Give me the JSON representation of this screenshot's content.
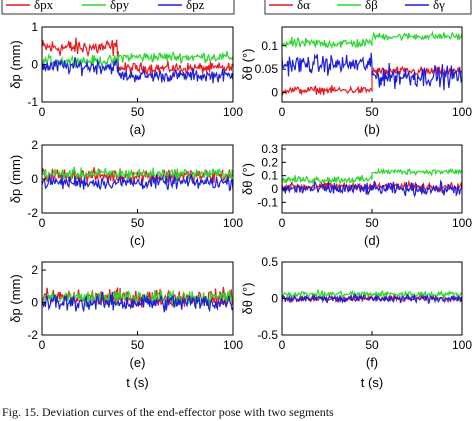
{
  "figure_caption": "Fig. 15.    Deviation curves of the end-effector pose with two segments",
  "colors": {
    "red": "#e8191e",
    "green": "#2fd62f",
    "blue": "#1f1fd8",
    "axis": "#000000"
  },
  "legend_left": {
    "entries": [
      "δpx",
      "δpy",
      "δpz"
    ]
  },
  "legend_right": {
    "entries": [
      "δα",
      "δβ",
      "δγ"
    ]
  },
  "chart_data": [
    {
      "panel": "(a)",
      "type": "line",
      "xlabel": "",
      "ylabel": "δp (mm)",
      "xlim": [
        0,
        100
      ],
      "ylim": [
        -1,
        1
      ],
      "xticks": [
        "0",
        "50",
        "100"
      ],
      "yticks": [
        "1",
        "0",
        "-1"
      ],
      "series": [
        {
          "name": "δpx",
          "color": "red",
          "segments": [
            [
              0,
              40,
              0.45,
              0.35
            ],
            [
              40,
              100,
              -0.1,
              0.22
            ]
          ]
        },
        {
          "name": "δpy",
          "color": "green",
          "segments": [
            [
              0,
              40,
              0.1,
              0.2
            ],
            [
              40,
              100,
              0.2,
              0.2
            ]
          ]
        },
        {
          "name": "δpz",
          "color": "blue",
          "segments": [
            [
              0,
              40,
              -0.05,
              0.3
            ],
            [
              40,
              100,
              -0.3,
              0.25
            ]
          ]
        }
      ]
    },
    {
      "panel": "(b)",
      "type": "line",
      "xlabel": "",
      "ylabel": "δθ (°)",
      "xlim": [
        0,
        100
      ],
      "ylim": [
        -0.02,
        0.14
      ],
      "xticks": [
        "0",
        "50",
        "100"
      ],
      "yticks": [
        "0.1",
        "0.05",
        "0"
      ],
      "series": [
        {
          "name": "δα",
          "color": "red",
          "segments": [
            [
              0,
              50,
              0.005,
              0.012
            ],
            [
              50,
              100,
              0.045,
              0.014
            ]
          ]
        },
        {
          "name": "δβ",
          "color": "green",
          "segments": [
            [
              0,
              50,
              0.105,
              0.016
            ],
            [
              50,
              100,
              0.12,
              0.012
            ]
          ]
        },
        {
          "name": "δγ",
          "color": "blue",
          "segments": [
            [
              0,
              50,
              0.06,
              0.03
            ],
            [
              50,
              100,
              0.035,
              0.035
            ]
          ]
        }
      ]
    },
    {
      "panel": "(c)",
      "type": "line",
      "xlabel": "",
      "ylabel": "δp (mm)",
      "xlim": [
        0,
        100
      ],
      "ylim": [
        -2,
        2
      ],
      "xticks": [
        "0",
        "50",
        "100"
      ],
      "yticks": [
        "2",
        "0",
        "-2"
      ],
      "series": [
        {
          "name": "δpx",
          "color": "red",
          "segments": [
            [
              0,
              100,
              0.2,
              0.6
            ]
          ]
        },
        {
          "name": "δpy",
          "color": "green",
          "segments": [
            [
              0,
              100,
              0.3,
              0.5
            ]
          ]
        },
        {
          "name": "δpz",
          "color": "blue",
          "segments": [
            [
              0,
              100,
              -0.2,
              0.6
            ]
          ]
        }
      ]
    },
    {
      "panel": "(d)",
      "type": "line",
      "xlabel": "",
      "ylabel": "δθ (°)",
      "xlim": [
        0,
        100
      ],
      "ylim": [
        -0.18,
        0.33
      ],
      "xticks": [
        "0",
        "50",
        "100"
      ],
      "yticks": [
        "0.3",
        "0.2",
        "0.1",
        "0",
        "-0.1"
      ],
      "series": [
        {
          "name": "δα",
          "color": "red",
          "segments": [
            [
              0,
              100,
              0.02,
              0.04
            ]
          ]
        },
        {
          "name": "δβ",
          "color": "green",
          "segments": [
            [
              0,
              50,
              0.07,
              0.04
            ],
            [
              50,
              100,
              0.13,
              0.03
            ]
          ]
        },
        {
          "name": "δγ",
          "color": "blue",
          "segments": [
            [
              0,
              100,
              0.0,
              0.07
            ]
          ]
        }
      ]
    },
    {
      "panel": "(e)",
      "type": "line",
      "xlabel": "t (s)",
      "ylabel": "δp (mm)",
      "xlim": [
        0,
        100
      ],
      "ylim": [
        -2,
        2.5
      ],
      "xticks": [
        "0",
        "50",
        "100"
      ],
      "yticks": [
        "2",
        "0",
        "-2"
      ],
      "series": [
        {
          "name": "δpx",
          "color": "red",
          "segments": [
            [
              0,
              100,
              0.3,
              0.8
            ]
          ]
        },
        {
          "name": "δpy",
          "color": "green",
          "segments": [
            [
              0,
              100,
              0.3,
              0.7
            ]
          ]
        },
        {
          "name": "δpz",
          "color": "blue",
          "segments": [
            [
              0,
              100,
              0.0,
              0.8
            ]
          ]
        }
      ]
    },
    {
      "panel": "(f)",
      "type": "line",
      "xlabel": "t (s)",
      "ylabel": "δθ (°)",
      "xlim": [
        0,
        100
      ],
      "ylim": [
        -0.5,
        0.5
      ],
      "xticks": [
        "0",
        "50",
        "100"
      ],
      "yticks": [
        "0.5",
        "0",
        "-0.5"
      ],
      "series": [
        {
          "name": "δα",
          "color": "red",
          "segments": [
            [
              0,
              100,
              0.0,
              0.06
            ]
          ]
        },
        {
          "name": "δβ",
          "color": "green",
          "segments": [
            [
              0,
              100,
              0.06,
              0.06
            ]
          ]
        },
        {
          "name": "δγ",
          "color": "blue",
          "segments": [
            [
              0,
              100,
              0.0,
              0.08
            ]
          ]
        }
      ]
    }
  ]
}
